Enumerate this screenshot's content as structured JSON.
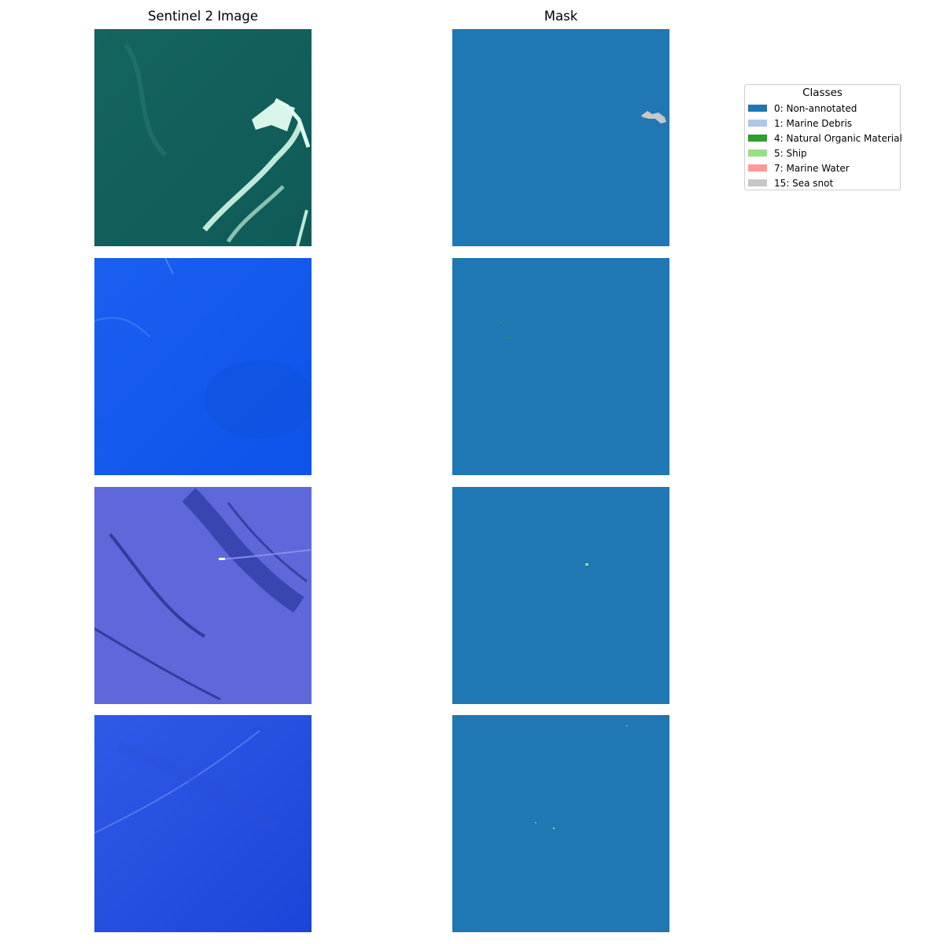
{
  "columns": {
    "left_title": "Sentinel 2 Image",
    "right_title": "Mask"
  },
  "legend": {
    "title": "Classes",
    "items": [
      {
        "label": "0: Non-annotated",
        "color": "#1f77b4"
      },
      {
        "label": "1: Marine Debris",
        "color": "#aec7e8"
      },
      {
        "label": "4: Natural Organic Material",
        "color": "#2ca02c"
      },
      {
        "label": "5: Ship",
        "color": "#98df8a"
      },
      {
        "label": "7: Marine Water",
        "color": "#ff9896"
      },
      {
        "label": "15: Sea snot",
        "color": "#c7c7c7"
      }
    ]
  },
  "rows": [
    {
      "image_theme": "teal water with white sea snot filaments",
      "mask_classes": [
        "0: Non-annotated",
        "15: Sea snot"
      ]
    },
    {
      "image_theme": "bright blue water with faint streaks",
      "mask_classes": [
        "0: Non-annotated",
        "4: Natural Organic Material"
      ]
    },
    {
      "image_theme": "periwinkle noisy water with dark streaks and a ship wake",
      "mask_classes": [
        "0: Non-annotated",
        "5: Ship"
      ]
    },
    {
      "image_theme": "blue rippled water with faint diagonal streak",
      "mask_classes": [
        "0: Non-annotated",
        "5: Ship"
      ]
    }
  ]
}
